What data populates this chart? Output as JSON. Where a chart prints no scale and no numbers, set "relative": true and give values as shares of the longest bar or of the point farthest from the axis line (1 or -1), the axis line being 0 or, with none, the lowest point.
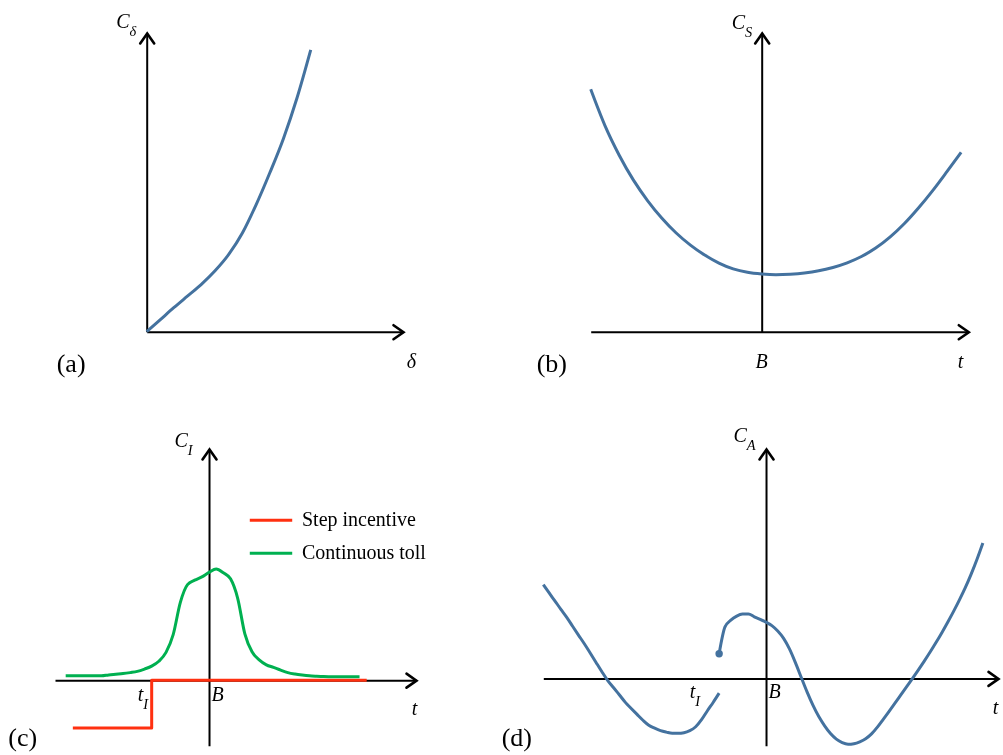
{
  "chart_data": [
    {
      "type": "line",
      "title": "(a)",
      "xlabel": "δ",
      "ylabel": "C$_{δ}$",
      "relative": true,
      "categories": [
        null,
        null,
        null,
        null,
        null,
        null,
        null,
        null,
        null,
        null,
        null,
        null,
        null
      ],
      "series": [
        {
          "color": "#44729f",
          "values": [
            0,
            0.043,
            0.086,
            0.127,
            0.168,
            0.216,
            0.274,
            0.35,
            0.45,
            0.563,
            0.685,
            0.83,
            1
          ]
        }
      ]
    },
    {
      "type": "line",
      "title": "(b)",
      "xlabel": "t",
      "ylabel": "C$_{S}$",
      "relative": true,
      "annotations": [
        "B"
      ],
      "categories": [
        null,
        null,
        null,
        null,
        null,
        null,
        null,
        null,
        null,
        null,
        null,
        null,
        null,
        null,
        null,
        null,
        null,
        null,
        null,
        null,
        null,
        null,
        null,
        null,
        null,
        null,
        null
      ],
      "series": [
        {
          "color": "#44729f",
          "values": [
            1,
            0.85,
            0.728,
            0.625,
            0.54,
            0.468,
            0.407,
            0.357,
            0.316,
            0.283,
            0.259,
            0.245,
            0.238,
            0.235,
            0.237,
            0.242,
            0.251,
            0.265,
            0.284,
            0.31,
            0.345,
            0.39,
            0.445,
            0.51,
            0.582,
            0.66,
            0.74
          ]
        }
      ]
    },
    {
      "type": "line",
      "title": "(c)",
      "xlabel": "t",
      "ylabel": "C$_{I}$",
      "relative": true,
      "legend": "top right",
      "annotations": [
        "t$_{I}$",
        "B"
      ],
      "categories": [
        null,
        null,
        null,
        null,
        null,
        null,
        null,
        null,
        null,
        null,
        null,
        null,
        null,
        null,
        null,
        null,
        null,
        null,
        null,
        null,
        null,
        null,
        null,
        null,
        null,
        null,
        null,
        null,
        null,
        null,
        null,
        null,
        null,
        null,
        null,
        null,
        null,
        null,
        null,
        null,
        null,
        null,
        null
      ],
      "series": [
        {
          "name": "Step incentive",
          "type": "step",
          "color": "#ff3010",
          "values": [
            null,
            -0.43,
            -0.43,
            -0.43,
            -0.43,
            -0.43,
            -0.43,
            -0.43,
            -0.43,
            -0.43,
            -0.43,
            -0.43,
            0,
            0,
            0,
            0,
            0,
            0,
            0,
            0,
            0,
            0,
            0,
            0,
            0,
            0,
            0,
            0,
            0,
            0,
            0,
            0,
            0,
            0,
            0,
            0,
            0,
            0,
            0,
            0,
            0,
            0,
            0
          ]
        },
        {
          "name": "Continuous toll",
          "type": "line",
          "color": "#00b050",
          "values": [
            0.039,
            0.039,
            0.039,
            0.039,
            0.039,
            0.039,
            0.047,
            0.053,
            0.059,
            0.068,
            0.079,
            0.1,
            0.126,
            0.17,
            0.25,
            0.41,
            0.7,
            0.86,
            0.9,
            0.93,
            0.97,
            1,
            0.967,
            0.912,
            0.737,
            0.417,
            0.255,
            0.183,
            0.138,
            0.115,
            0.09,
            0.068,
            0.055,
            0.046,
            0.039,
            0.035,
            0.032,
            0.031,
            0.03,
            0.03,
            0.03,
            0.03,
            null
          ]
        }
      ]
    },
    {
      "type": "line",
      "title": "(d)",
      "xlabel": "t",
      "ylabel": "C$_{A}$",
      "relative": true,
      "annotations": [
        "t$_{I}$",
        "B"
      ],
      "categories": [
        null,
        null,
        null,
        null,
        null,
        null,
        null,
        null,
        null,
        null,
        null,
        null,
        null,
        null,
        null,
        null,
        null,
        null,
        null,
        null,
        null,
        null,
        null,
        null,
        null,
        null,
        null,
        null,
        null,
        null,
        null,
        null,
        null,
        null,
        null,
        null,
        null,
        null,
        null,
        null,
        null,
        null,
        null,
        null,
        null,
        null,
        null,
        null,
        null,
        null,
        null,
        null,
        null,
        null,
        null,
        null,
        null,
        null,
        null,
        null,
        null,
        null,
        null,
        null,
        null,
        null,
        null,
        null,
        null,
        null,
        null,
        null,
        null,
        null,
        null,
        null
      ],
      "series": [
        {
          "color": "#44729f",
          "values": [
            0.692,
            0.631,
            0.571,
            0.51,
            0.451,
            0.385,
            0.32,
            0.256,
            0.188,
            0.118,
            0.049,
            -0.016,
            -0.069,
            -0.123,
            -0.177,
            -0.222,
            -0.266,
            -0.309,
            -0.346,
            -0.368,
            -0.386,
            -0.397,
            -0.405,
            -0.405,
            -0.401,
            -0.386,
            -0.357,
            -0.305,
            -0.239,
            -0.176,
            -0.109,
            null,
            null,
            null,
            null,
            null,
            null,
            null,
            null,
            null,
            null,
            null,
            null,
            null,
            null,
            null,
            null,
            null,
            null,
            null,
            null,
            null,
            null,
            null,
            null,
            null,
            null,
            null,
            null,
            null,
            null,
            null,
            null,
            null,
            null,
            null,
            null,
            null,
            null,
            null,
            null,
            null,
            null,
            null,
            null,
            null
          ]
        },
        {
          "color": "#44729f",
          "values": [
            null,
            null,
            null,
            null,
            null,
            null,
            null,
            null,
            null,
            null,
            null,
            null,
            null,
            null,
            null,
            null,
            null,
            null,
            null,
            null,
            null,
            null,
            null,
            null,
            null,
            null,
            null,
            null,
            null,
            null,
            0.182,
            0.38,
            0.43,
            0.46,
            0.475,
            0.476,
            0.455,
            0.436,
            0.415,
            0.39,
            0.35,
            0.296,
            0.218,
            0.118,
            0.008,
            -0.1,
            -0.198,
            -0.282,
            -0.35,
            -0.407,
            -0.448,
            -0.474,
            -0.486,
            -0.482,
            -0.468,
            -0.446,
            -0.41,
            -0.36,
            -0.302,
            -0.243,
            -0.183,
            -0.122,
            -0.061,
            0,
            0.063,
            0.128,
            0.195,
            0.265,
            0.338,
            0.415,
            0.495,
            0.58,
            0.67,
            0.77,
            0.88,
            1
          ]
        }
      ]
    }
  ]
}
